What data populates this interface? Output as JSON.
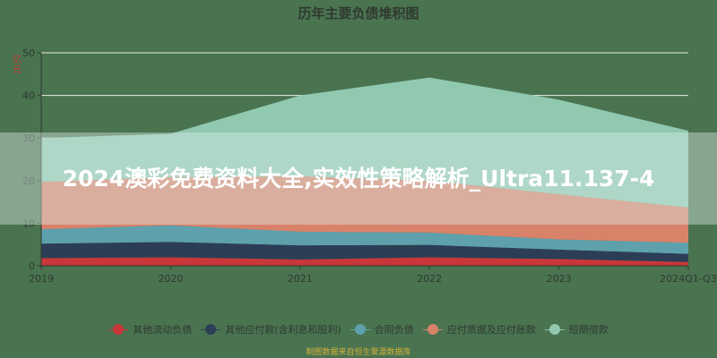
{
  "chart_data": {
    "type": "area",
    "stacked": true,
    "title": "历年主要负债堆积图",
    "ylabel": "亿元",
    "xlabel": "",
    "categories": [
      "2019",
      "2020",
      "2021",
      "2022",
      "2023",
      "2024Q1-Q3"
    ],
    "ylim": [
      0,
      50
    ],
    "yticks": [
      0,
      10,
      20,
      30,
      40,
      50
    ],
    "grid": true,
    "legend_position": "bottom",
    "series": [
      {
        "name": "其他流动负债",
        "color": "#c9373a",
        "values": [
          1.8,
          2.0,
          1.5,
          2.0,
          1.6,
          0.9
        ]
      },
      {
        "name": "其他应付款(含利息和股利)",
        "color": "#2c3e55",
        "values": [
          3.4,
          3.6,
          3.3,
          2.9,
          2.2,
          1.9
        ]
      },
      {
        "name": "合同负债",
        "color": "#5ea1ad",
        "values": [
          3.4,
          3.9,
          3.2,
          2.9,
          2.4,
          2.6
        ]
      },
      {
        "name": "应付票据及应付账款",
        "color": "#d9826a",
        "values": [
          11.1,
          11.3,
          13.0,
          12.2,
          10.6,
          8.3
        ]
      },
      {
        "name": "短期借款",
        "color": "#90c9b0",
        "values": [
          10.3,
          10.2,
          19.0,
          24.2,
          22.2,
          18.0
        ]
      }
    ],
    "source_note": "制图数据来自恒生聚源数据库"
  },
  "banner": {
    "text": "2024澳彩免费资料大全,实效性策略解析_Ultra11.137-4"
  },
  "colors": {
    "background": "#4a7350",
    "grid": "#e8efe6",
    "axis_text": "#2f3a30"
  }
}
